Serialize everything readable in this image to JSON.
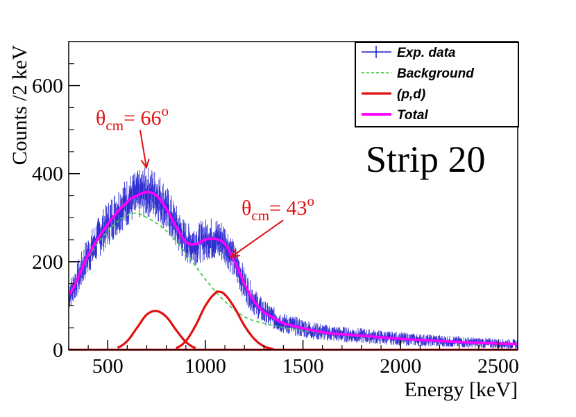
{
  "chart_data": {
    "type": "line",
    "title": "",
    "xlabel": "Energy [keV]",
    "ylabel": "Counts /2 keV",
    "xlim": [
      300,
      2600
    ],
    "ylim": [
      0,
      700
    ],
    "xticks": [
      500,
      1000,
      1500,
      2000,
      2500
    ],
    "xtick_labels": [
      "500",
      "1000",
      "1500",
      "2000",
      "2500"
    ],
    "yticks": [
      0,
      200,
      400,
      600
    ],
    "ytick_labels": [
      "0",
      "200",
      "400",
      "600"
    ],
    "strip_label": "Strip 20",
    "legend": {
      "placement": "top-right",
      "entries": [
        "Exp. data",
        "Background",
        "(p,d)",
        "Total"
      ]
    },
    "annotations": [
      {
        "theta_symbol": "θ",
        "subscript": "cm",
        "equals": "= 66",
        "superscript": "o",
        "points_to": [
          700,
          370
        ]
      },
      {
        "theta_symbol": "θ",
        "subscript": "cm",
        "equals": "= 43",
        "superscript": "o",
        "points_to": [
          1130,
          210
        ]
      }
    ],
    "series": [
      {
        "name": "Background",
        "style": "dashed",
        "x": [
          300,
          400,
          500,
          600,
          640,
          700,
          800,
          900,
          1000,
          1100,
          1200,
          1300,
          1400,
          1600,
          1800,
          2000,
          2200,
          2400,
          2600
        ],
        "values": [
          125,
          210,
          270,
          305,
          310,
          300,
          270,
          220,
          160,
          110,
          75,
          60,
          50,
          38,
          30,
          24,
          19,
          15,
          12
        ]
      },
      {
        "name": "(p,d) 66°",
        "style": "solid",
        "x": [
          550,
          600,
          650,
          700,
          750,
          800,
          850,
          900,
          950
        ],
        "values": [
          5,
          20,
          50,
          80,
          88,
          75,
          45,
          18,
          4
        ]
      },
      {
        "name": "(p,d) 43°",
        "style": "solid",
        "x": [
          850,
          900,
          950,
          1000,
          1050,
          1070,
          1100,
          1150,
          1200,
          1250,
          1300,
          1350
        ],
        "values": [
          4,
          20,
          55,
          100,
          128,
          132,
          125,
          95,
          55,
          25,
          8,
          2
        ]
      },
      {
        "name": "Total",
        "style": "solid",
        "x": [
          300,
          400,
          500,
          600,
          650,
          700,
          750,
          800,
          850,
          900,
          950,
          1000,
          1050,
          1100,
          1150,
          1200,
          1250,
          1300,
          1400,
          1600,
          1800,
          2000,
          2200,
          2400,
          2600
        ],
        "values": [
          125,
          215,
          285,
          335,
          350,
          358,
          350,
          320,
          280,
          245,
          240,
          250,
          252,
          240,
          200,
          150,
          110,
          85,
          60,
          40,
          32,
          25,
          20,
          16,
          13
        ]
      }
    ],
    "exp_data_description": "Exp. data"
  },
  "colors": {
    "data": "#1a1acc",
    "background": "#44cc44",
    "pd": "#e01010",
    "total": "#ff00ff",
    "annotation": "#e01010",
    "axis": "#000000"
  }
}
